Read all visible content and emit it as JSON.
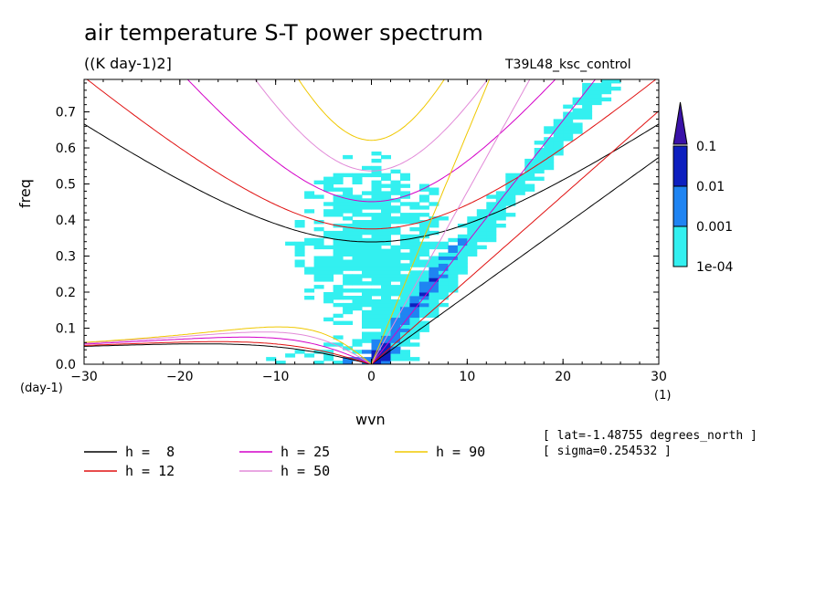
{
  "chart_data": {
    "type": "heatmap",
    "title": "air temperature S-T power spectrum",
    "units": "((K day-1)2]",
    "run_name": "T39L48_ksc_control",
    "xlabel": "wvn",
    "ylabel": "freq",
    "x_unit": "(1)",
    "y_unit": "(day-1)",
    "xlim": [
      -30,
      30
    ],
    "ylim": [
      0,
      0.79
    ],
    "x_ticks": [
      "-30",
      "-20",
      "-10",
      "0",
      "10",
      "20",
      "30"
    ],
    "y_ticks": [
      "0.0",
      "0.1",
      "0.2",
      "0.3",
      "0.4",
      "0.5",
      "0.6",
      "0.7"
    ],
    "colorbar": {
      "levels": [
        "1e-04",
        "0.001",
        "0.01",
        "0.1"
      ],
      "colors": [
        "#33f0f0",
        "#1f84f2",
        "#0d1fbf",
        "#3a12a8"
      ]
    },
    "dispersion_curves": [
      {
        "label": "h =  8",
        "h": 8,
        "color": "#000000"
      },
      {
        "label": "h = 12",
        "h": 12,
        "color": "#e01010"
      },
      {
        "label": "h = 25",
        "h": 25,
        "color": "#d400c8"
      },
      {
        "label": "h = 50",
        "h": 50,
        "color": "#e28ad8"
      },
      {
        "label": "h = 90",
        "h": 90,
        "color": "#f0c800"
      }
    ],
    "annotations": [
      "[ lat=-1.48755 degrees_north ]",
      "[ sigma=0.254532 ]"
    ]
  }
}
